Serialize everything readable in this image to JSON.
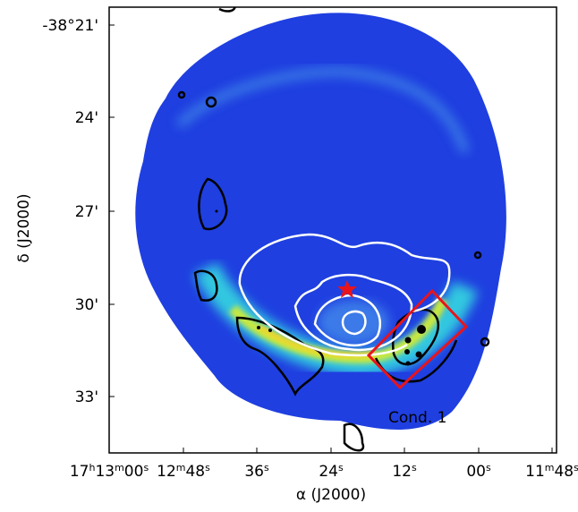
{
  "figure": {
    "xlabel": "α (J2000)",
    "ylabel": "δ (J2000)",
    "xticks": [
      [
        "17",
        "h",
        "13",
        "m",
        "00",
        "s"
      ],
      [
        "12",
        "m",
        "48",
        "s"
      ],
      [
        "36",
        "s"
      ],
      [
        "24",
        "s"
      ],
      [
        "12",
        "s"
      ],
      [
        "00",
        "s"
      ],
      [
        "11",
        "m",
        "48",
        "s"
      ]
    ],
    "yticks": [
      "-38°21'",
      "24'",
      "27'",
      "30'",
      "33'"
    ],
    "annotation": "Cond. 1"
  }
}
